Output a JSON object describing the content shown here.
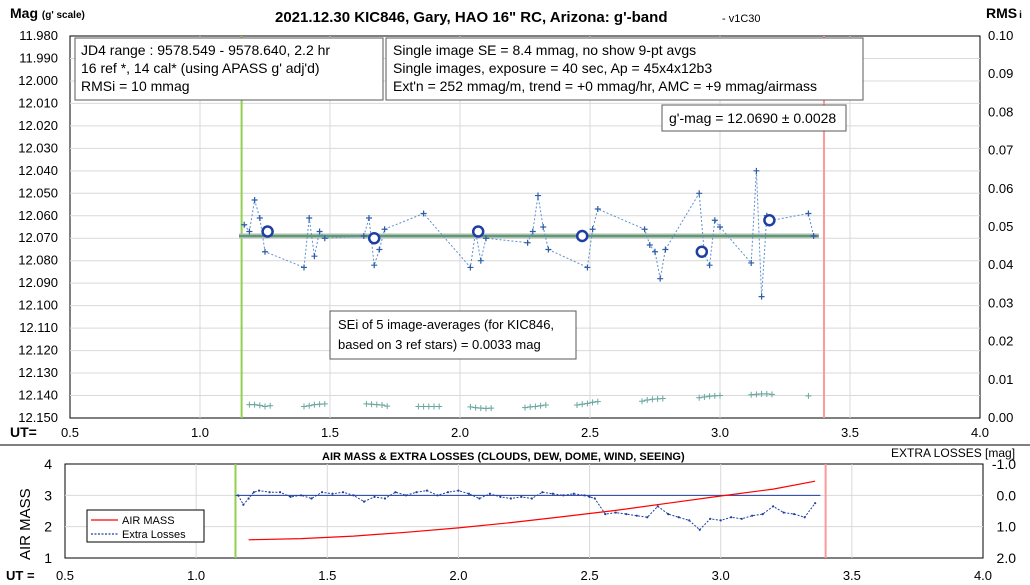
{
  "chart_data": [
    {
      "type": "scatter",
      "title": "2021.12.30 KIC846, Gary, HAO 16\" RC, Arizona: g'-band",
      "title_suffix": "- v1C30",
      "ylabel_main": "Mag",
      "ylabel_scale": "(g' scale)",
      "y2label_main": "RMS",
      "y2label_sub": "i",
      "xlabel": "UT=",
      "xlim": [
        0.5,
        4.0
      ],
      "ylim": [
        11.98,
        12.15
      ],
      "y2lim": [
        0.0,
        0.1
      ],
      "x_ticks": [
        "0.5",
        "1.0",
        "1.5",
        "2.0",
        "2.5",
        "3.0",
        "3.5",
        "4.0"
      ],
      "y_ticks": [
        "11.980",
        "11.990",
        "12.000",
        "12.010",
        "12.020",
        "12.030",
        "12.040",
        "12.050",
        "12.060",
        "12.070",
        "12.080",
        "12.090",
        "12.100",
        "12.110",
        "12.120",
        "12.130",
        "12.140",
        "12.150"
      ],
      "y2_ticks": [
        "0.10",
        "0.09",
        "0.08",
        "0.07",
        "0.06",
        "0.05",
        "0.04",
        "0.03",
        "0.02",
        "0.01",
        "0.00"
      ],
      "grid": true,
      "vlines": [
        {
          "name": "start",
          "x": 1.16,
          "color": "#92d050"
        },
        {
          "name": "end",
          "x": 3.4,
          "color": "#ff9999"
        }
      ],
      "mean_line": {
        "value": 12.069,
        "x": [
          1.15,
          3.38
        ],
        "color": "#4fa36a"
      },
      "single_images": {
        "color": "#2e5ca8",
        "x": [
          1.17,
          1.19,
          1.21,
          1.23,
          1.25,
          1.4,
          1.42,
          1.44,
          1.46,
          1.48,
          1.63,
          1.65,
          1.67,
          1.69,
          1.71,
          1.86,
          2.04,
          2.06,
          2.08,
          2.1,
          2.26,
          2.28,
          2.3,
          2.32,
          2.34,
          2.49,
          2.51,
          2.53,
          2.71,
          2.73,
          2.75,
          2.77,
          2.79,
          2.92,
          2.94,
          2.96,
          2.98,
          3.0,
          3.12,
          3.14,
          3.16,
          3.18,
          3.2,
          3.34,
          3.36
        ],
        "y": [
          12.064,
          12.067,
          12.053,
          12.061,
          12.076,
          12.083,
          12.061,
          12.078,
          12.067,
          12.07,
          12.069,
          12.061,
          12.082,
          12.075,
          12.066,
          12.059,
          12.083,
          12.067,
          12.08,
          12.07,
          12.072,
          12.067,
          12.051,
          12.065,
          12.075,
          12.083,
          12.066,
          12.057,
          12.066,
          12.073,
          12.076,
          12.088,
          12.075,
          12.05,
          12.077,
          12.082,
          12.062,
          12.065,
          12.081,
          12.04,
          12.096,
          12.06,
          12.062,
          12.059,
          12.069
        ]
      },
      "averages": {
        "color": "#1f3fa0",
        "x": [
          1.26,
          1.67,
          2.07,
          2.47,
          2.93,
          3.19
        ],
        "y": [
          12.067,
          12.07,
          12.067,
          12.069,
          12.076,
          12.062
        ]
      },
      "rms_series": {
        "color": "#6aa7a0",
        "groups": [
          {
            "x": [
              1.19,
              1.21,
              1.23,
              1.25,
              1.27
            ],
            "y": [
              0.0035,
              0.0035,
              0.0033,
              0.003,
              0.0032
            ]
          },
          {
            "x": [
              1.4,
              1.42,
              1.44,
              1.46,
              1.48
            ],
            "y": [
              0.003,
              0.0032,
              0.0035,
              0.0036,
              0.0037
            ]
          },
          {
            "x": [
              1.64,
              1.66,
              1.68,
              1.7,
              1.72
            ],
            "y": [
              0.0037,
              0.0036,
              0.0035,
              0.0034,
              0.0031
            ]
          },
          {
            "x": [
              1.84,
              1.86,
              1.88,
              1.9,
              1.92
            ],
            "y": [
              0.003,
              0.003,
              0.003,
              0.003,
              0.003
            ]
          },
          {
            "x": [
              2.04,
              2.06,
              2.08,
              2.1,
              2.12
            ],
            "y": [
              0.0029,
              0.0027,
              0.0026,
              0.0025,
              0.0026
            ]
          },
          {
            "x": [
              2.25,
              2.27,
              2.29,
              2.31,
              2.33
            ],
            "y": [
              0.0027,
              0.0029,
              0.003,
              0.0032,
              0.0034
            ]
          },
          {
            "x": [
              2.45,
              2.47,
              2.49,
              2.51,
              2.53
            ],
            "y": [
              0.0034,
              0.0036,
              0.0038,
              0.0041,
              0.0043
            ]
          },
          {
            "x": [
              2.7,
              2.72,
              2.74,
              2.76,
              2.78
            ],
            "y": [
              0.0044,
              0.0047,
              0.0049,
              0.005,
              0.0051
            ]
          },
          {
            "x": [
              2.92,
              2.94,
              2.96,
              2.98,
              3.0
            ],
            "y": [
              0.0053,
              0.0055,
              0.0057,
              0.0058,
              0.0059
            ]
          },
          {
            "x": [
              3.12,
              3.14,
              3.16,
              3.18,
              3.2
            ],
            "y": [
              0.0061,
              0.0062,
              0.0063,
              0.0063,
              0.0062
            ]
          },
          {
            "x": [
              3.34
            ],
            "y": [
              0.0058
            ]
          }
        ]
      },
      "annotations": {
        "jd_box": [
          "JD4 range : 9578.549 - 9578.640,  2.2  hr",
          "16 ref *, 14 cal* (using APASS g' adj'd)",
          "RMSi = 10 mmag"
        ],
        "info_box": [
          "Single image SE = 8.4 mmag, no show  9-pt avgs",
          "Single images, exposure = 40 sec, Ap = 45x4x12b3",
          "Ext'n = 252 mmag/m, trend = +0 mmag/hr, AMC = +9 mmag/airmass"
        ],
        "gmag_box": "g'-mag = 12.0690 ± 0.0028",
        "sei_box": [
          "SEi of 5 image-averages (for KIC846,",
          "based on 3 ref stars) = 0.0033 mag"
        ]
      }
    },
    {
      "type": "line",
      "title": "AIR MASS & EXTRA LOSSES (CLOUDS, DEW, DOME, WIND, SEEING)",
      "ylabel": "AIR MASS",
      "y2label": "EXTRA LOSSES [mag]",
      "xlabel": "UT =",
      "xlim": [
        0.5,
        4.0
      ],
      "ylim": [
        1,
        4
      ],
      "y2lim": [
        -1.0,
        2.0
      ],
      "x_ticks": [
        "0.5",
        "1.0",
        "1.5",
        "2.0",
        "2.5",
        "3.0",
        "3.5",
        "4.0"
      ],
      "y_ticks": [
        "4",
        "3",
        "2",
        "1"
      ],
      "y2_ticks": [
        "-1.0",
        "0.0",
        "1.0",
        "2.0"
      ],
      "grid": true,
      "vlines": [
        {
          "name": "start",
          "x": 1.15,
          "color": "#92d050"
        },
        {
          "name": "end",
          "x": 3.4,
          "color": "#ff9999"
        }
      ],
      "zero_line": {
        "value": 0.0,
        "x": [
          1.15,
          3.38
        ],
        "color": "#1f3fa0"
      },
      "legend": [
        {
          "name": "AIR MASS",
          "color": "#ff0000",
          "dashed": false
        },
        {
          "name": "Extra Losses",
          "color": "#1f3fa0",
          "dashed": true
        }
      ],
      "legend_position": "bottom-left",
      "series": [
        {
          "name": "AIR MASS",
          "color": "#ff0000",
          "x": [
            1.2,
            1.4,
            1.6,
            1.8,
            2.0,
            2.2,
            2.4,
            2.6,
            2.8,
            3.0,
            3.2,
            3.36
          ],
          "y": [
            1.58,
            1.62,
            1.7,
            1.82,
            1.96,
            2.13,
            2.32,
            2.52,
            2.75,
            2.98,
            3.2,
            3.45
          ]
        },
        {
          "name": "Extra Losses",
          "color": "#1f3fa0",
          "x": [
            1.16,
            1.18,
            1.2,
            1.22,
            1.24,
            1.28,
            1.32,
            1.36,
            1.4,
            1.44,
            1.48,
            1.52,
            1.56,
            1.6,
            1.64,
            1.68,
            1.72,
            1.76,
            1.8,
            1.84,
            1.88,
            1.92,
            1.96,
            2.0,
            2.04,
            2.08,
            2.12,
            2.16,
            2.2,
            2.24,
            2.28,
            2.32,
            2.36,
            2.4,
            2.44,
            2.48,
            2.5,
            2.52,
            2.56,
            2.6,
            2.64,
            2.68,
            2.72,
            2.76,
            2.8,
            2.84,
            2.88,
            2.92,
            2.96,
            3.0,
            3.04,
            3.08,
            3.12,
            3.16,
            3.2,
            3.24,
            3.28,
            3.32,
            3.36
          ],
          "y": [
            0.0,
            0.3,
            0.1,
            -0.1,
            -0.15,
            -0.1,
            -0.1,
            0.05,
            0.0,
            0.1,
            -0.1,
            -0.05,
            -0.1,
            0.0,
            0.2,
            0.05,
            0.1,
            -0.1,
            0.0,
            -0.1,
            -0.15,
            0.0,
            -0.1,
            -0.15,
            -0.05,
            0.1,
            -0.05,
            0.05,
            0.1,
            0.05,
            0.1,
            -0.1,
            -0.05,
            0.0,
            -0.05,
            0.0,
            0.05,
            0.1,
            0.6,
            0.55,
            0.6,
            0.65,
            0.7,
            0.35,
            0.6,
            0.7,
            0.8,
            1.1,
            0.75,
            0.8,
            0.7,
            0.75,
            0.65,
            0.6,
            0.35,
            0.55,
            0.6,
            0.7,
            0.25
          ]
        }
      ]
    }
  ]
}
